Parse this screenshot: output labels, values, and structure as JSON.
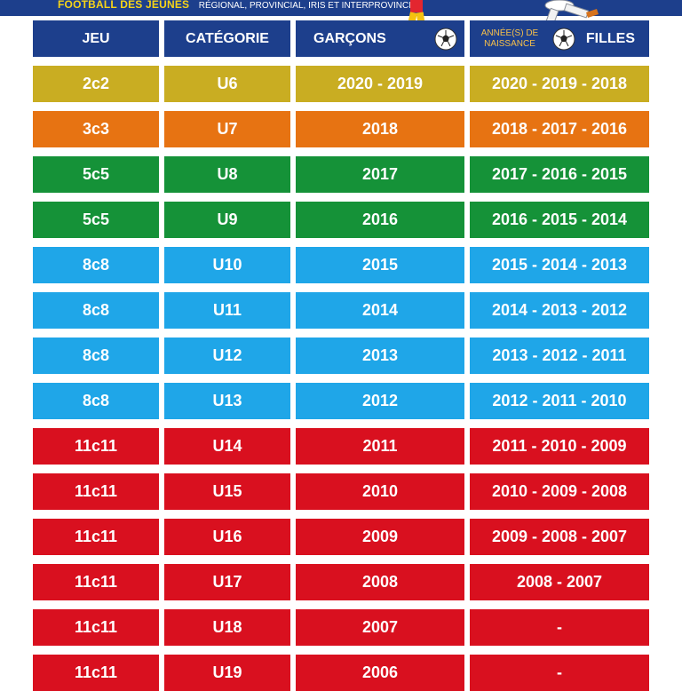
{
  "banner": {
    "title": "FOOTBALL DES JEUNES",
    "subtitle": "RÉGIONAL, PROVINCIAL, IRIS ET INTERPROVINCIAL"
  },
  "header": {
    "jeu": "JEU",
    "categorie": "CATÉGORIE",
    "garcons": "GARÇONS",
    "birth_label_line1": "ANNÉE(S) DE",
    "birth_label_line2": "NAISSANCE",
    "filles": "FILLES"
  },
  "colors": {
    "header": "#1d3f8c",
    "yellow": "#c9ad22",
    "orange": "#e77312",
    "green": "#159238",
    "blue": "#1fa6e8",
    "red": "#d9101f",
    "birth_label": "#f7c04a"
  },
  "rows": [
    {
      "jeu": "2c2",
      "categorie": "U6",
      "garcons": "2020 - 2019",
      "filles": "2020 - 2019 - 2018",
      "color": "yellow"
    },
    {
      "jeu": "3c3",
      "categorie": "U7",
      "garcons": "2018",
      "filles": "2018 - 2017 - 2016",
      "color": "orange"
    },
    {
      "jeu": "5c5",
      "categorie": "U8",
      "garcons": "2017",
      "filles": "2017 - 2016 - 2015",
      "color": "green"
    },
    {
      "jeu": "5c5",
      "categorie": "U9",
      "garcons": "2016",
      "filles": "2016 - 2015 - 2014",
      "color": "green"
    },
    {
      "jeu": "8c8",
      "categorie": "U10",
      "garcons": "2015",
      "filles": "2015 - 2014 - 2013",
      "color": "blue"
    },
    {
      "jeu": "8c8",
      "categorie": "U11",
      "garcons": "2014",
      "filles": "2014 - 2013 - 2012",
      "color": "blue"
    },
    {
      "jeu": "8c8",
      "categorie": "U12",
      "garcons": "2013",
      "filles": "2013 - 2012 - 2011",
      "color": "blue"
    },
    {
      "jeu": "8c8",
      "categorie": "U13",
      "garcons": "2012",
      "filles": "2012 - 2011 - 2010",
      "color": "blue"
    },
    {
      "jeu": "11c11",
      "categorie": "U14",
      "garcons": "2011",
      "filles": "2011 - 2010 - 2009",
      "color": "red"
    },
    {
      "jeu": "11c11",
      "categorie": "U15",
      "garcons": "2010",
      "filles": "2010 - 2009 - 2008",
      "color": "red"
    },
    {
      "jeu": "11c11",
      "categorie": "U16",
      "garcons": "2009",
      "filles": "2009 - 2008 - 2007",
      "color": "red"
    },
    {
      "jeu": "11c11",
      "categorie": "U17",
      "garcons": "2008",
      "filles": "2008 - 2007",
      "color": "red"
    },
    {
      "jeu": "11c11",
      "categorie": "U18",
      "garcons": "2007",
      "filles": "-",
      "color": "red"
    },
    {
      "jeu": "11c11",
      "categorie": "U19",
      "garcons": "2006",
      "filles": "-",
      "color": "red"
    }
  ]
}
